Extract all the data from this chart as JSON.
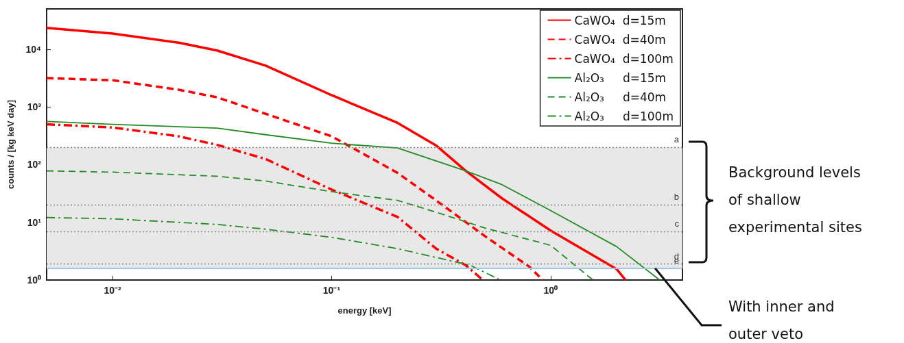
{
  "chart_data": {
    "type": "line",
    "xlabel": "energy [keV]",
    "ylabel": "counts / [kg keV day]",
    "log": "xy",
    "xlim": [
      0.005,
      4
    ],
    "ylim": [
      1,
      50000
    ],
    "xticks": [
      {
        "value": 0.01,
        "label": "10⁻²"
      },
      {
        "value": 0.1,
        "label": "10⁻¹"
      },
      {
        "value": 1,
        "label": "10⁰"
      }
    ],
    "yticks": [
      {
        "value": 1,
        "label": "10⁰"
      },
      {
        "value": 10,
        "label": "10¹"
      },
      {
        "value": 100,
        "label": "10²"
      },
      {
        "value": 1000,
        "label": "10³"
      },
      {
        "value": 10000,
        "label": "10⁴"
      }
    ],
    "legend": "top right",
    "marker": "none",
    "series": [
      {
        "name": "CaWO₄  d=15m",
        "color": "#ff0000",
        "line_style": "solid",
        "x": [
          0.005,
          0.01,
          0.02,
          0.03,
          0.05,
          0.1,
          0.2,
          0.3,
          0.41,
          0.6,
          1,
          2,
          2.2
        ],
        "values": [
          23400,
          18700,
          13000,
          9500,
          5200,
          1600,
          530,
          215,
          78,
          26,
          7.2,
          1.55,
          1
        ]
      },
      {
        "name": "CaWO₄  d=40m",
        "color": "#ff0000",
        "line_style": "dashed",
        "x": [
          0.005,
          0.01,
          0.02,
          0.03,
          0.05,
          0.1,
          0.2,
          0.3,
          0.5,
          0.8,
          0.92
        ],
        "values": [
          3160,
          2900,
          1990,
          1470,
          760,
          310,
          72,
          24,
          5.8,
          1.7,
          1
        ]
      },
      {
        "name": "CaWO₄  d=100m",
        "color": "#ff0000",
        "line_style": "dashdot",
        "x": [
          0.005,
          0.01,
          0.02,
          0.03,
          0.05,
          0.1,
          0.2,
          0.3,
          0.41,
          0.49
        ],
        "values": [
          500,
          440,
          310,
          220,
          125,
          37,
          12.4,
          3.5,
          1.8,
          1
        ]
      },
      {
        "name": "Al₂O₃     d=15m",
        "color": "#228b22",
        "line_style": "solid",
        "x": [
          0.005,
          0.01,
          0.03,
          0.05,
          0.1,
          0.2,
          0.41,
          0.6,
          1,
          2,
          3.15
        ],
        "values": [
          560,
          500,
          430,
          330,
          235,
          194,
          78,
          45,
          16,
          3.8,
          1
        ]
      },
      {
        "name": "Al₂O₃     d=40m",
        "color": "#228b22",
        "line_style": "dashed",
        "x": [
          0.005,
          0.01,
          0.03,
          0.05,
          0.1,
          0.2,
          0.3,
          0.5,
          1,
          1.56
        ],
        "values": [
          78,
          74,
          63,
          52,
          34,
          24,
          15,
          8,
          4,
          1
        ]
      },
      {
        "name": "Al₂O₃     d=100m",
        "color": "#228b22",
        "line_style": "dashdot",
        "x": [
          0.005,
          0.01,
          0.03,
          0.05,
          0.1,
          0.2,
          0.43,
          0.59
        ],
        "values": [
          12.1,
          11.5,
          9.2,
          7.6,
          5.5,
          3.5,
          1.8,
          1
        ]
      }
    ],
    "bands": [
      {
        "axis": "y",
        "from": 1.6,
        "to": 200,
        "color": "#e8e8e8"
      }
    ],
    "ref_lines": [
      {
        "axis": "y",
        "value": 200,
        "label": "a",
        "color": "#888888",
        "line_style": "dotted"
      },
      {
        "axis": "y",
        "value": 20,
        "label": "b",
        "color": "#888888",
        "line_style": "dotted"
      },
      {
        "axis": "y",
        "value": 7,
        "label": "c",
        "color": "#888888",
        "line_style": "dotted"
      },
      {
        "axis": "y",
        "value": 1.9,
        "label": "d",
        "color": "#888888",
        "line_style": "dotted"
      },
      {
        "axis": "y",
        "value": 1.6,
        "label": "e",
        "color": "#9ec9e6",
        "line_style": "solid"
      }
    ],
    "annotations": [
      "Background levels of shallow experimental sites",
      {
        "text": "With inner and outer veto",
        "x": 3,
        "y": 1.6
      }
    ]
  }
}
